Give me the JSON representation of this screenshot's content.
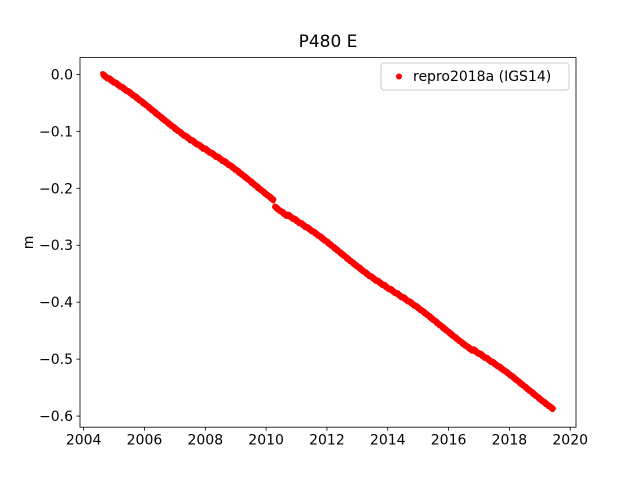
{
  "figure": {
    "background": "#ffffff",
    "title": "P480 E"
  },
  "chart_data": {
    "type": "scatter",
    "title": "P480 E",
    "xlabel": "",
    "ylabel": "m",
    "grid": false,
    "xlim": [
      2003.88,
      2020.19
    ],
    "ylim": [
      -0.6195,
      0.0295
    ],
    "x_ticks": {
      "values": [
        2004,
        2006,
        2008,
        2010,
        2012,
        2014,
        2016,
        2018,
        2020
      ],
      "labels": [
        "2004",
        "2006",
        "2008",
        "2010",
        "2012",
        "2014",
        "2016",
        "2018",
        "2020"
      ]
    },
    "y_ticks": {
      "values": [
        0.0,
        -0.1,
        -0.2,
        -0.3,
        -0.4,
        -0.5,
        -0.6
      ],
      "labels": [
        "0.0",
        "−0.1",
        "−0.2",
        "−0.3",
        "−0.4",
        "−0.5",
        "−0.6"
      ]
    },
    "legend": {
      "position": "upper right",
      "entries": [
        {
          "label": "repro2018a (IGS14)",
          "color": "#ff0000",
          "marker": "dot"
        }
      ]
    },
    "series": [
      {
        "name": "repro2018a (IGS14)",
        "color": "#ff0000",
        "marker_radius_px": 2.4,
        "n_points": 1200,
        "x_start": 2004.62,
        "x_end": 2019.45,
        "trend": {
          "value_at_start_m": 0.0,
          "slope_m_per_yr": -0.0388
        },
        "offsets": [
          {
            "x": 2010.27,
            "delta_m": -0.01
          }
        ],
        "noise_m": {
          "fast_cycle": [
            0.0015,
            -0.001,
            0.0023,
            -0.0019,
            0.0006,
            0.0025,
            -0.0022,
            0.0009,
            -0.0004,
            0.002,
            -0.0016,
            0.0011,
            -0.0025,
            0.0003,
            0.0018,
            -0.0013,
            0.0007
          ],
          "slow_cycle": [
            0.0,
            0.0009,
            0.0017,
            0.0024,
            0.0028,
            0.0026,
            0.002,
            0.0011,
            0.0001,
            -0.0009,
            -0.0018,
            -0.0024,
            -0.0028,
            -0.0025,
            -0.0018,
            -0.001,
            0.0001,
            0.001,
            0.0019,
            0.0026,
            0.0028,
            0.0024,
            0.0017,
            0.0007,
            -0.0003,
            -0.0013,
            -0.0021,
            -0.0027,
            -0.0028
          ],
          "slow_stride": 17
        },
        "anchor_points": [
          [
            2004.62,
            0.0
          ],
          [
            2006.0,
            -0.054
          ],
          [
            2008.0,
            -0.131
          ],
          [
            2010.0,
            -0.209
          ],
          [
            2012.0,
            -0.296
          ],
          [
            2014.0,
            -0.374
          ],
          [
            2016.0,
            -0.452
          ],
          [
            2018.0,
            -0.529
          ],
          [
            2019.45,
            -0.585
          ]
        ]
      }
    ],
    "colors": {
      "series": "#ff0000",
      "axis": "#000000",
      "text": "#000000",
      "legend_border": "#cccccc",
      "background": "#ffffff"
    }
  }
}
